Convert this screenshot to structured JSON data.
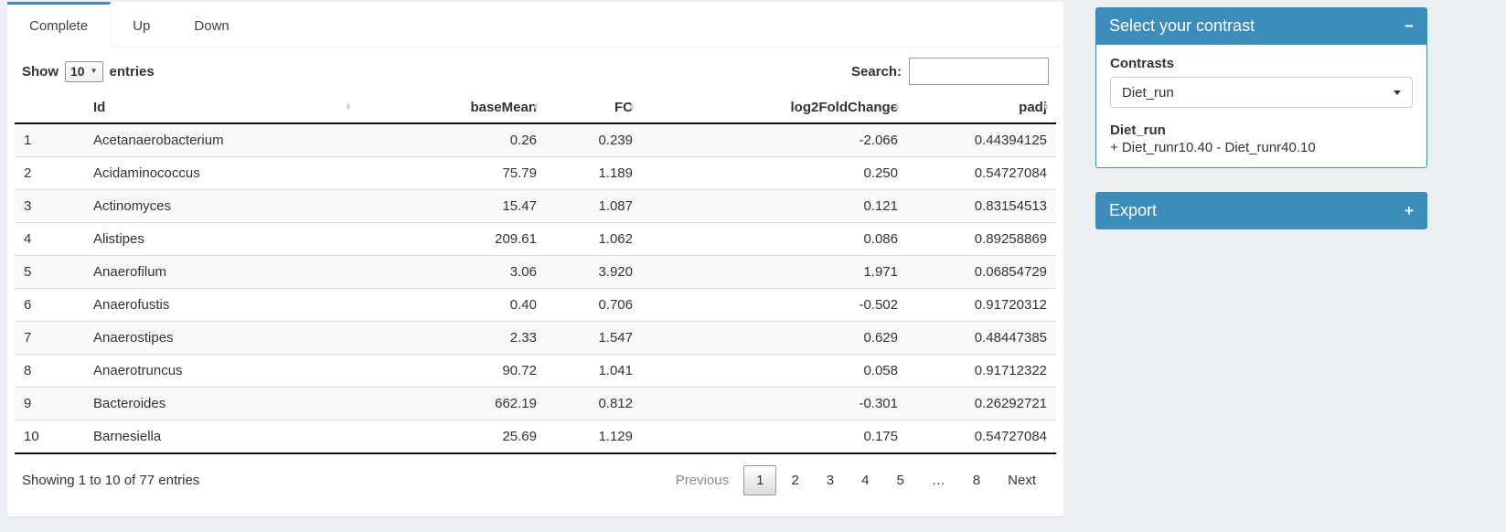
{
  "colors": {
    "accent": "#3c8dbc",
    "page_bg": "#ecf0f5"
  },
  "tabs": [
    {
      "label": "Complete",
      "active": true
    },
    {
      "label": "Up",
      "active": false
    },
    {
      "label": "Down",
      "active": false
    }
  ],
  "length_control": {
    "prefix": "Show",
    "value": "10",
    "suffix": "entries"
  },
  "search": {
    "label": "Search:",
    "value": "",
    "placeholder": ""
  },
  "table": {
    "columns": [
      {
        "key": "idx",
        "label": "",
        "align": "left",
        "sortable": false
      },
      {
        "key": "id",
        "label": "Id",
        "align": "left",
        "sortable": true
      },
      {
        "key": "baseMean",
        "label": "baseMean",
        "align": "right",
        "sortable": true
      },
      {
        "key": "fc",
        "label": "FC",
        "align": "right",
        "sortable": true
      },
      {
        "key": "log2fc",
        "label": "log2FoldChange",
        "align": "right",
        "sortable": true
      },
      {
        "key": "padj",
        "label": "padj",
        "align": "right",
        "sortable": true
      }
    ],
    "rows": [
      [
        "1",
        "Acetanaerobacterium",
        "0.26",
        "0.239",
        "-2.066",
        "0.44394125"
      ],
      [
        "2",
        "Acidaminococcus",
        "75.79",
        "1.189",
        "0.250",
        "0.54727084"
      ],
      [
        "3",
        "Actinomyces",
        "15.47",
        "1.087",
        "0.121",
        "0.83154513"
      ],
      [
        "4",
        "Alistipes",
        "209.61",
        "1.062",
        "0.086",
        "0.89258869"
      ],
      [
        "5",
        "Anaerofilum",
        "3.06",
        "3.920",
        "1.971",
        "0.06854729"
      ],
      [
        "6",
        "Anaerofustis",
        "0.40",
        "0.706",
        "-0.502",
        "0.91720312"
      ],
      [
        "7",
        "Anaerostipes",
        "2.33",
        "1.547",
        "0.629",
        "0.48447385"
      ],
      [
        "8",
        "Anaerotruncus",
        "90.72",
        "1.041",
        "0.058",
        "0.91712322"
      ],
      [
        "9",
        "Bacteroides",
        "662.19",
        "0.812",
        "-0.301",
        "0.26292721"
      ],
      [
        "10",
        "Barnesiella",
        "25.69",
        "1.129",
        "0.175",
        "0.54727084"
      ]
    ],
    "info": "Showing 1 to 10 of 77 entries"
  },
  "pagination": {
    "previous": "Previous",
    "pages": [
      "1",
      "2",
      "3",
      "4",
      "5",
      "…",
      "8"
    ],
    "current": "1",
    "next": "Next"
  },
  "contrast_panel": {
    "title": "Select your contrast",
    "collapse_icon": "−",
    "label": "Contrasts",
    "selected": "Diet_run",
    "detail_title": "Diet_run",
    "detail_formula": "+ Diet_runr10.40 - Diet_runr40.10"
  },
  "export_panel": {
    "title": "Export",
    "collapse_icon": "+"
  }
}
